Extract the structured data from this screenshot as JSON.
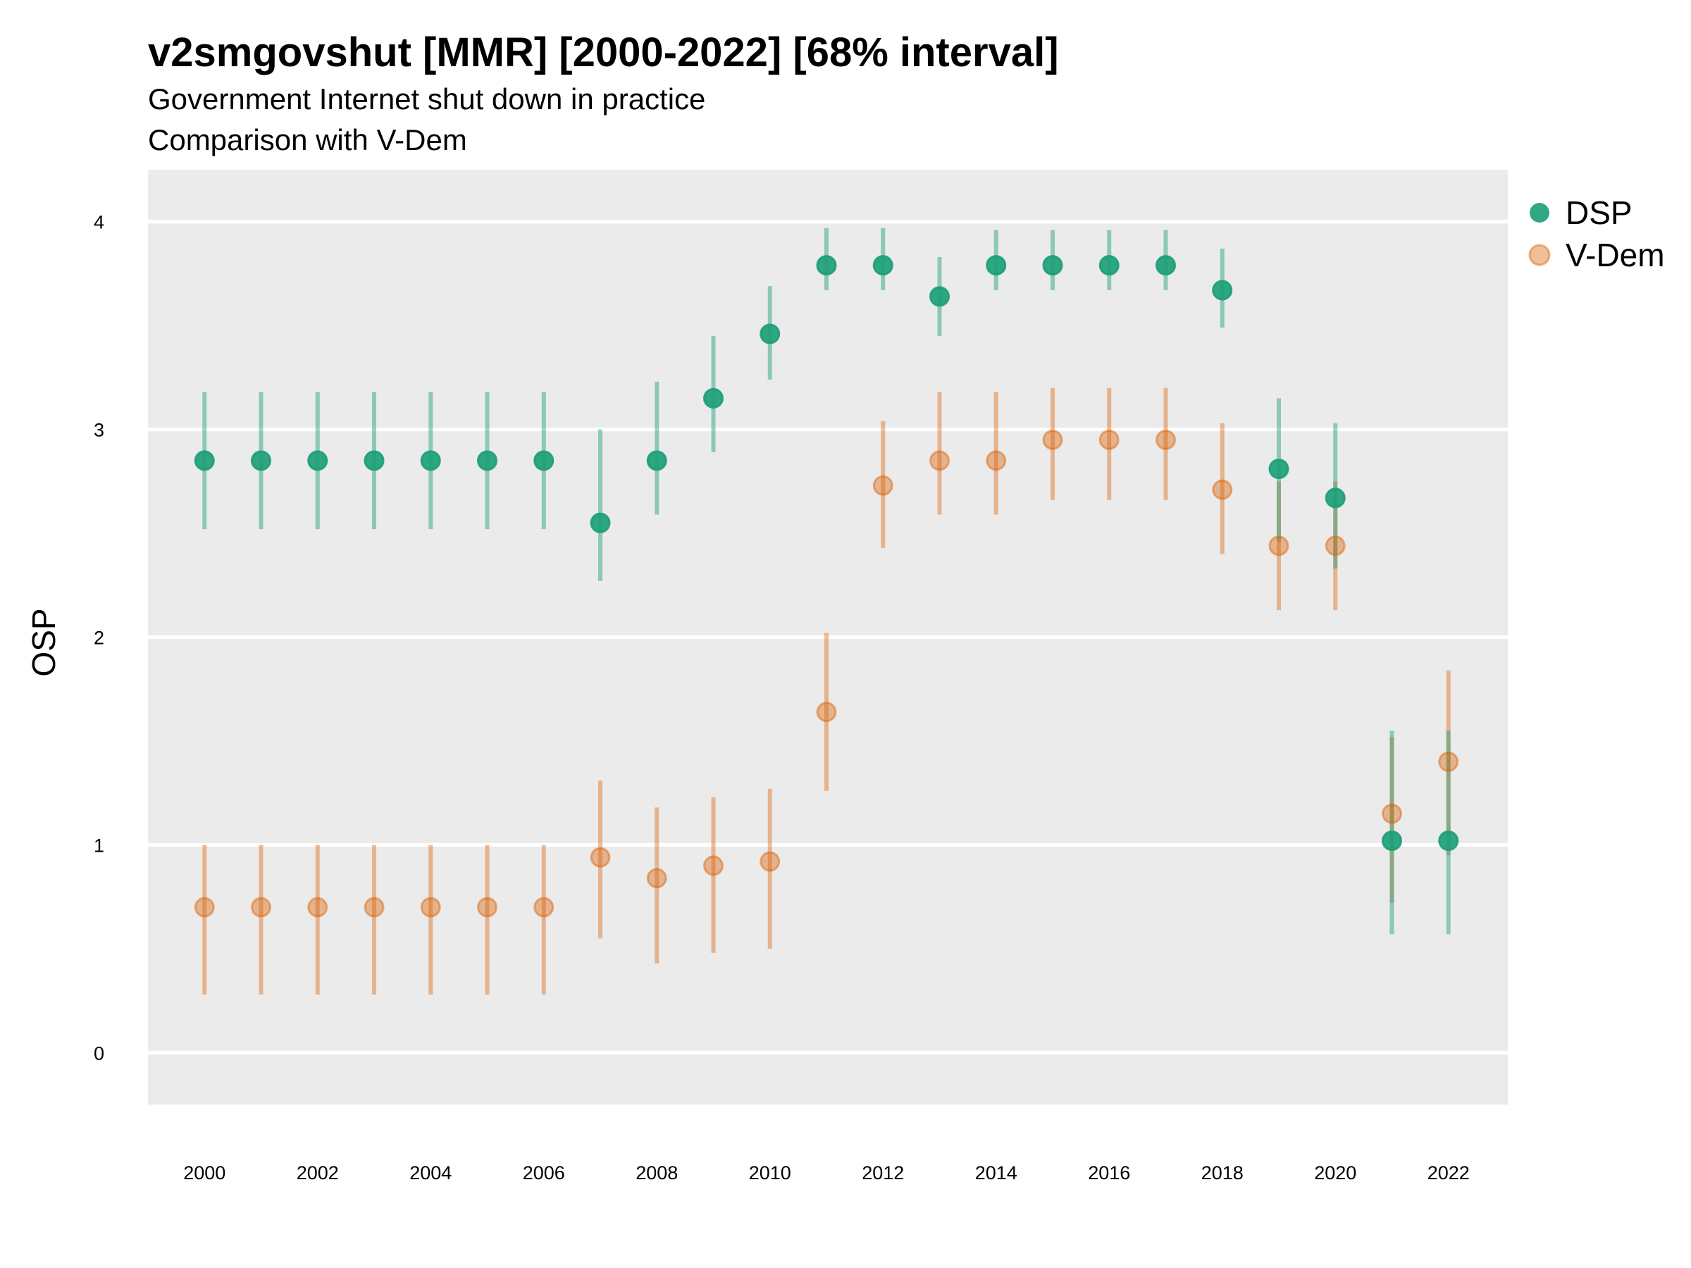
{
  "chart_data": {
    "type": "scatter",
    "title": "v2smgovshut [MMR] [2000-2022] [68% interval]",
    "subtitle_lines": [
      "Government Internet shut down in practice",
      "Comparison with V-Dem"
    ],
    "xlabel": "",
    "ylabel": "OSP",
    "x_ticks": [
      "2000",
      "2002",
      "2004",
      "2006",
      "2008",
      "2010",
      "2012",
      "2014",
      "2016",
      "2018",
      "2020",
      "2022"
    ],
    "y_ticks": [
      "0",
      "1",
      "2",
      "3",
      "4"
    ],
    "xlim": [
      1999,
      2023.05
    ],
    "ylim": [
      -0.25,
      4.25
    ],
    "grid": true,
    "legend_position": "right",
    "background": "#EBEBEB",
    "series": [
      {
        "name": "DSP",
        "color": "#1B9E77",
        "x": [
          2000,
          2001,
          2002,
          2003,
          2004,
          2005,
          2006,
          2007,
          2008,
          2009,
          2010,
          2011,
          2012,
          2013,
          2014,
          2015,
          2016,
          2017,
          2018,
          2019,
          2020,
          2021,
          2022
        ],
        "y": [
          2.85,
          2.85,
          2.85,
          2.85,
          2.85,
          2.85,
          2.85,
          2.55,
          2.85,
          3.15,
          3.46,
          3.79,
          3.79,
          3.64,
          3.79,
          3.79,
          3.79,
          3.79,
          3.67,
          2.81,
          2.67,
          1.02,
          1.02
        ],
        "lower": [
          2.52,
          2.52,
          2.52,
          2.52,
          2.52,
          2.52,
          2.52,
          2.27,
          2.59,
          2.89,
          3.24,
          3.67,
          3.67,
          3.45,
          3.67,
          3.67,
          3.67,
          3.67,
          3.49,
          2.46,
          2.33,
          0.57,
          0.57
        ],
        "upper": [
          3.18,
          3.18,
          3.18,
          3.18,
          3.18,
          3.18,
          3.18,
          3.0,
          3.23,
          3.45,
          3.69,
          3.97,
          3.97,
          3.83,
          3.96,
          3.96,
          3.96,
          3.96,
          3.87,
          3.15,
          3.03,
          1.55,
          1.55
        ]
      },
      {
        "name": "V-Dem",
        "color": "#D95F02",
        "x": [
          2000,
          2001,
          2002,
          2003,
          2004,
          2005,
          2006,
          2007,
          2008,
          2009,
          2010,
          2011,
          2012,
          2013,
          2014,
          2015,
          2016,
          2017,
          2018,
          2019,
          2020,
          2021,
          2022
        ],
        "y": [
          0.7,
          0.7,
          0.7,
          0.7,
          0.7,
          0.7,
          0.7,
          0.94,
          0.84,
          0.9,
          0.92,
          1.64,
          2.73,
          2.85,
          2.85,
          2.95,
          2.95,
          2.95,
          2.71,
          2.44,
          2.44,
          1.15,
          1.4
        ],
        "lower": [
          0.28,
          0.28,
          0.28,
          0.28,
          0.28,
          0.28,
          0.28,
          0.55,
          0.43,
          0.48,
          0.5,
          1.26,
          2.43,
          2.59,
          2.59,
          2.66,
          2.66,
          2.66,
          2.4,
          2.13,
          2.13,
          0.72,
          0.95
        ],
        "upper": [
          1.0,
          1.0,
          1.0,
          1.0,
          1.0,
          1.0,
          1.0,
          1.31,
          1.18,
          1.23,
          1.27,
          2.02,
          3.04,
          3.18,
          3.18,
          3.2,
          3.2,
          3.2,
          3.03,
          2.75,
          2.75,
          1.52,
          1.84
        ]
      }
    ]
  }
}
